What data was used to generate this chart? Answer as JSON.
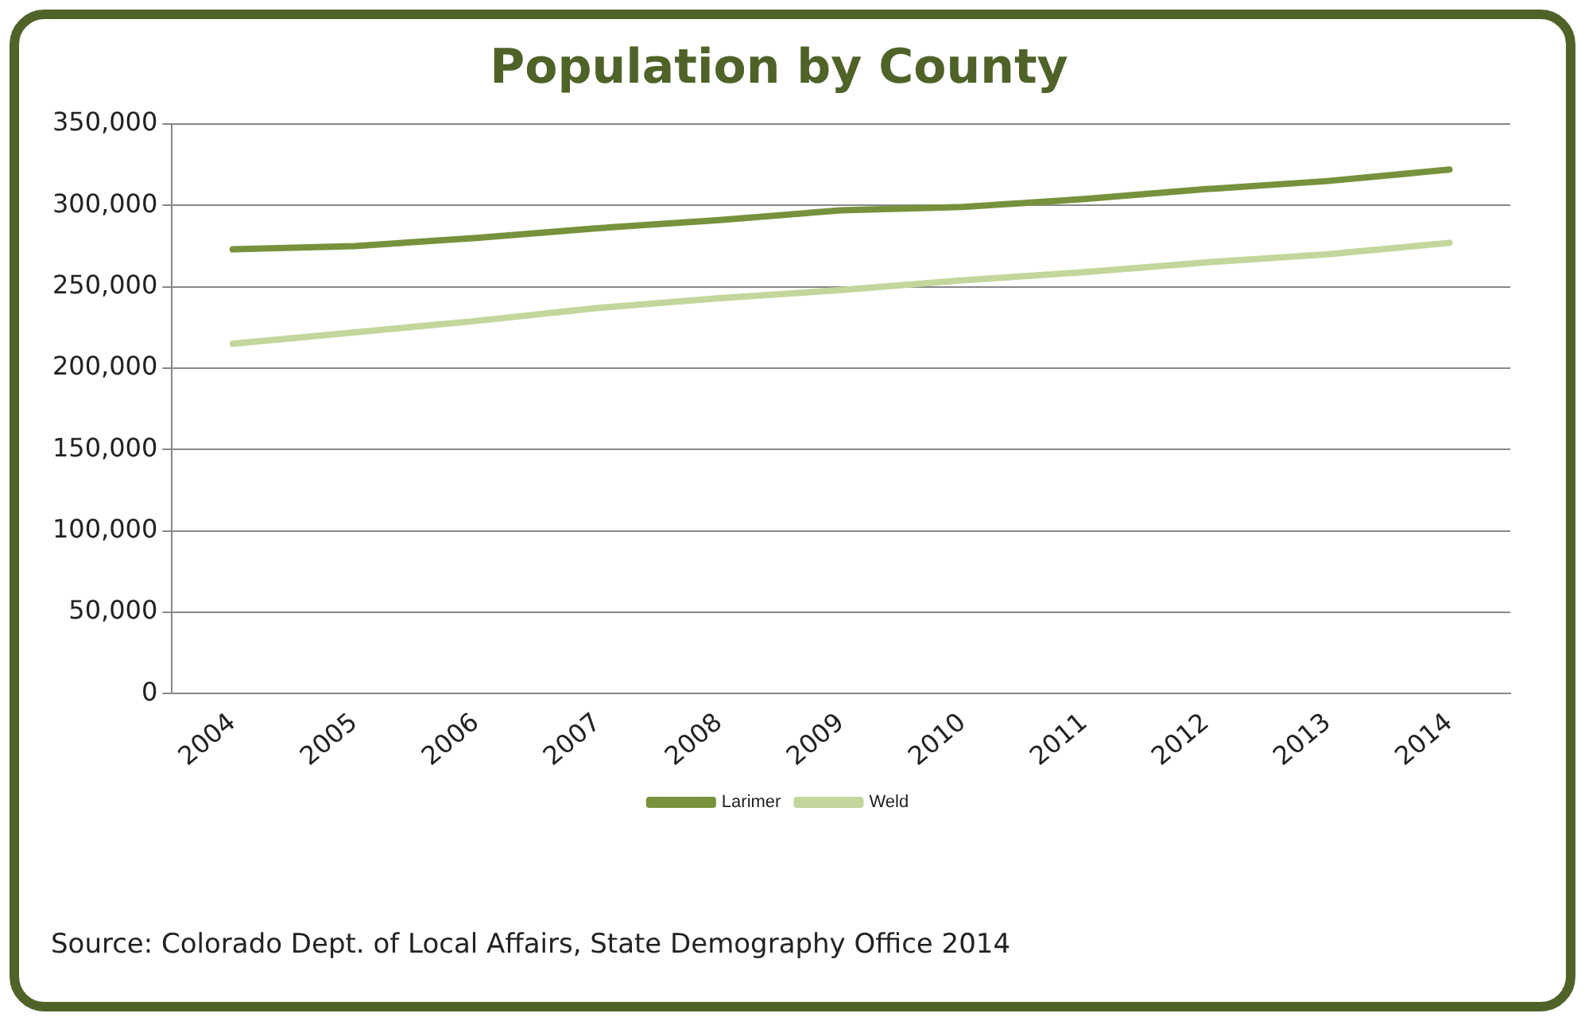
{
  "chart_data": {
    "type": "line",
    "title": "Population by County",
    "categories": [
      "2004",
      "2005",
      "2006",
      "2007",
      "2008",
      "2009",
      "2010",
      "2011",
      "2012",
      "2013",
      "2014"
    ],
    "series": [
      {
        "name": "Larimer",
        "color": "#76923c",
        "values": [
          273000,
          275000,
          280000,
          286000,
          291000,
          297000,
          299000,
          304000,
          310000,
          315000,
          322000
        ]
      },
      {
        "name": "Weld",
        "color": "#c3d69b",
        "values": [
          215000,
          222000,
          229000,
          237000,
          243000,
          248000,
          254000,
          259000,
          265000,
          270000,
          277000
        ]
      }
    ],
    "ylim": [
      0,
      350000
    ],
    "yticks": [
      0,
      {
        "value": 50000,
        "label": "50,000"
      },
      {
        "value": 100000,
        "label": "100,000"
      },
      {
        "value": 150000,
        "label": "150,000"
      },
      {
        "value": 200000,
        "label": "200,000"
      },
      {
        "value": 250000,
        "label": "250,000"
      },
      {
        "value": 300000,
        "label": "300,000"
      },
      {
        "value": 350000,
        "label": "350,000"
      }
    ],
    "grid": "y",
    "legend": "bottom",
    "marker": "none",
    "line_style": "solid",
    "annotations": [
      "Source: Colorado Dept. of Local Affairs, State Demography Office 2014"
    ]
  }
}
